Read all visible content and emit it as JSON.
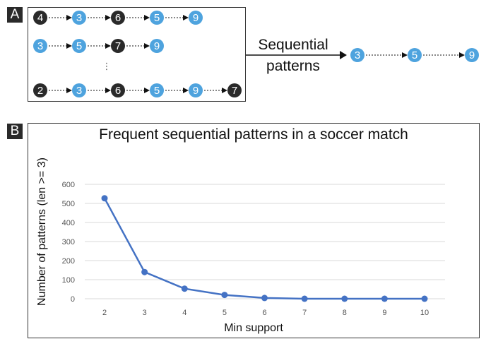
{
  "panel_labels": {
    "a": "A",
    "b": "B"
  },
  "colors": {
    "blue_node": "#4ea3de",
    "dark_node": "#2a2a2a",
    "line": "#4472c4",
    "grid": "#d9d9d9"
  },
  "panel_a": {
    "rows": [
      [
        {
          "v": "4",
          "kind": "dark"
        },
        {
          "v": "3",
          "kind": "blue"
        },
        {
          "v": "6",
          "kind": "dark"
        },
        {
          "v": "5",
          "kind": "blue"
        },
        {
          "v": "9",
          "kind": "blue"
        }
      ],
      [
        {
          "v": "3",
          "kind": "blue"
        },
        {
          "v": "5",
          "kind": "blue"
        },
        {
          "v": "7",
          "kind": "dark"
        },
        {
          "v": "9",
          "kind": "blue"
        }
      ],
      [
        {
          "v": "2",
          "kind": "dark"
        },
        {
          "v": "3",
          "kind": "blue"
        },
        {
          "v": "6",
          "kind": "dark"
        },
        {
          "v": "5",
          "kind": "blue"
        },
        {
          "v": "9",
          "kind": "blue"
        },
        {
          "v": "7",
          "kind": "dark"
        }
      ]
    ],
    "ellipsis": "⋮",
    "arrow_label_line1": "Sequential",
    "arrow_label_line2": "patterns",
    "result": [
      {
        "v": "3",
        "kind": "blue"
      },
      {
        "v": "5",
        "kind": "blue"
      },
      {
        "v": "9",
        "kind": "blue"
      }
    ]
  },
  "chart_data": {
    "type": "line",
    "title": "Frequent sequential patterns in a soccer match",
    "xlabel": "Min support",
    "ylabel": "Number of patterns (len >= 3)",
    "categories": [
      "2",
      "3",
      "4",
      "5",
      "6",
      "7",
      "8",
      "9",
      "10"
    ],
    "values": [
      527,
      140,
      53,
      20,
      4,
      0,
      0,
      0,
      0
    ],
    "ylim": [
      0,
      600
    ],
    "yticks": [
      "0",
      "100",
      "200",
      "300",
      "400",
      "500",
      "600"
    ],
    "grid": true,
    "legend": "none"
  }
}
